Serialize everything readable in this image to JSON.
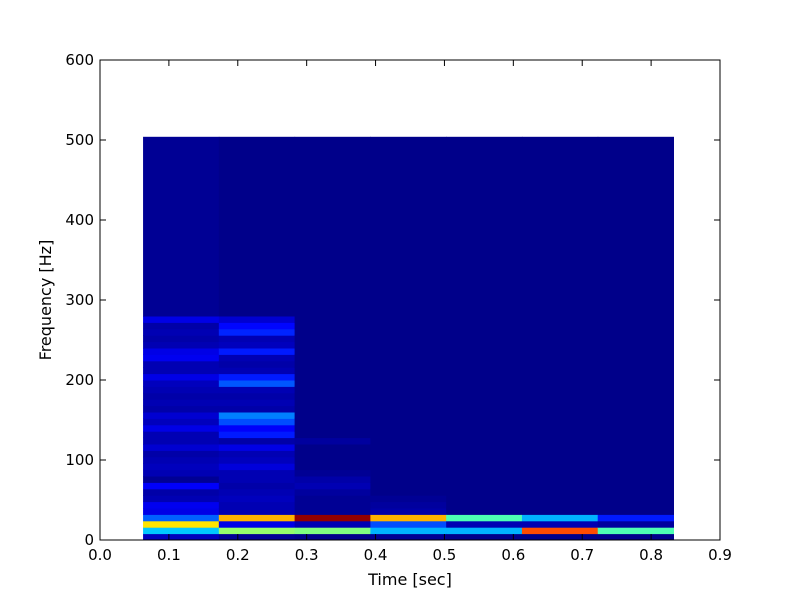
{
  "chart_data": {
    "type": "heatmap",
    "title": "",
    "xlabel": "Time [sec]",
    "ylabel": "Frequency [Hz]",
    "xlim": [
      0.0,
      0.9
    ],
    "ylim": [
      0,
      600
    ],
    "xticks": [
      "0.0",
      "0.1",
      "0.2",
      "0.3",
      "0.4",
      "0.5",
      "0.6",
      "0.7",
      "0.8",
      "0.9"
    ],
    "yticks": [
      "0",
      "100",
      "200",
      "300",
      "400",
      "500",
      "600"
    ],
    "colormap": "jet",
    "grid": false,
    "value_range": [
      0,
      1
    ],
    "time_edges": [
      0.0625,
      0.1725,
      0.2825,
      0.3925,
      0.5025,
      0.6125,
      0.7225,
      0.8325
    ],
    "freq_edges": [
      0,
      8,
      16,
      24,
      32,
      40,
      48,
      56,
      64,
      72,
      80,
      88,
      96,
      104,
      112,
      120,
      128,
      136,
      144,
      152,
      160,
      168,
      176,
      184,
      192,
      200,
      208,
      216,
      224,
      232,
      240,
      248,
      256,
      264,
      272,
      280,
      504
    ],
    "values": [
      [
        0.06,
        0.32,
        0.65,
        0.22,
        0.1,
        0.11,
        0.05,
        0.04,
        0.12,
        0.02,
        0.05,
        0.06,
        0.05,
        0.04,
        0.08,
        0.05,
        0.05,
        0.1,
        0.06,
        0.08,
        0.04,
        0.05,
        0.04,
        0.05,
        0.06,
        0.1,
        0.05,
        0.05,
        0.11,
        0.1,
        0.05,
        0.04,
        0.05,
        0.04,
        0.1,
        0.02
      ],
      [
        0.02,
        0.52,
        0.1,
        0.7,
        0.05,
        0.05,
        0.06,
        0.05,
        0.04,
        0.05,
        0.05,
        0.09,
        0.06,
        0.05,
        0.1,
        0.04,
        0.15,
        0.12,
        0.2,
        0.25,
        0.04,
        0.05,
        0.04,
        0.05,
        0.21,
        0.15,
        0.05,
        0.04,
        0.05,
        0.15,
        0.06,
        0.05,
        0.16,
        0.13,
        0.08,
        0.01
      ],
      [
        0.01,
        0.5,
        0.05,
        0.98,
        0.02,
        0.02,
        0.02,
        0.03,
        0.05,
        0.04,
        0.02,
        0.01,
        0.01,
        0.01,
        0.01,
        0.03,
        0.01,
        0.01,
        0.01,
        0.01,
        0.01,
        0.01,
        0.01,
        0.01,
        0.01,
        0.01,
        0.01,
        0.01,
        0.01,
        0.01,
        0.01,
        0.01,
        0.01,
        0.01,
        0.01,
        0.01
      ],
      [
        0.02,
        0.3,
        0.2,
        0.7,
        0.04,
        0.03,
        0.02,
        0.01,
        0.01,
        0.01,
        0.01,
        0.01,
        0.01,
        0.01,
        0.01,
        0.01,
        0.01,
        0.01,
        0.01,
        0.01,
        0.01,
        0.01,
        0.01,
        0.01,
        0.01,
        0.01,
        0.01,
        0.01,
        0.01,
        0.01,
        0.01,
        0.01,
        0.01,
        0.01,
        0.01,
        0.01
      ],
      [
        0.01,
        0.3,
        0.05,
        0.45,
        0.01,
        0.01,
        0.01,
        0.01,
        0.01,
        0.01,
        0.01,
        0.01,
        0.01,
        0.01,
        0.01,
        0.01,
        0.01,
        0.01,
        0.01,
        0.01,
        0.01,
        0.01,
        0.01,
        0.01,
        0.01,
        0.01,
        0.01,
        0.01,
        0.01,
        0.01,
        0.01,
        0.01,
        0.01,
        0.01,
        0.01,
        0.01
      ],
      [
        0.01,
        0.8,
        0.05,
        0.3,
        0.01,
        0.01,
        0.01,
        0.01,
        0.01,
        0.01,
        0.01,
        0.01,
        0.01,
        0.01,
        0.01,
        0.01,
        0.01,
        0.01,
        0.01,
        0.01,
        0.01,
        0.01,
        0.01,
        0.01,
        0.01,
        0.01,
        0.01,
        0.01,
        0.01,
        0.01,
        0.01,
        0.01,
        0.01,
        0.01,
        0.01,
        0.01
      ],
      [
        0.01,
        0.45,
        0.03,
        0.15,
        0.01,
        0.01,
        0.01,
        0.01,
        0.01,
        0.01,
        0.01,
        0.01,
        0.01,
        0.01,
        0.01,
        0.01,
        0.01,
        0.01,
        0.01,
        0.01,
        0.01,
        0.01,
        0.01,
        0.01,
        0.01,
        0.01,
        0.01,
        0.01,
        0.01,
        0.01,
        0.01,
        0.01,
        0.01,
        0.01,
        0.01,
        0.01
      ]
    ]
  }
}
